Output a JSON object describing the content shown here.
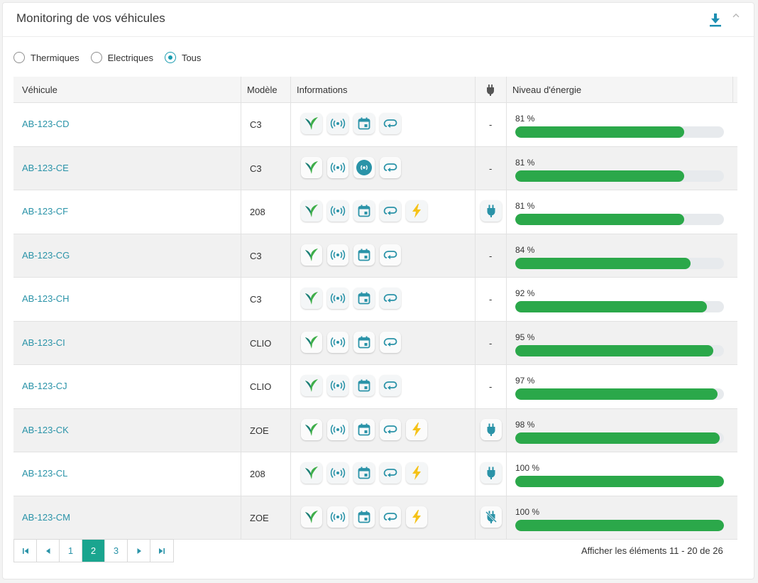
{
  "header": {
    "title": "Monitoring de vos véhicules",
    "download_icon": "download-icon",
    "collapse_icon": "chevron-up-icon"
  },
  "filters": [
    {
      "label": "Thermiques",
      "checked": false
    },
    {
      "label": "Electriques",
      "checked": false
    },
    {
      "label": "Tous",
      "checked": true
    }
  ],
  "table": {
    "columns": {
      "vehicle": "Véhicule",
      "model": "Modèle",
      "info": "Informations",
      "plug_icon": "plug-icon",
      "energy": "Niveau d'énergie"
    },
    "rows": [
      {
        "plate": "AB-123-CD",
        "model": "C3",
        "icons": [
          "bird-icon",
          "signal-icon",
          "calendar-icon",
          "route-icon"
        ],
        "plug": "-",
        "energy_label": "81 %",
        "energy": 81
      },
      {
        "plate": "AB-123-CE",
        "model": "C3",
        "icons": [
          "bird-icon",
          "signal-icon",
          "broadcast-icon",
          "route-icon"
        ],
        "plug": "-",
        "energy_label": "81 %",
        "energy": 81
      },
      {
        "plate": "AB-123-CF",
        "model": "208",
        "icons": [
          "bird-icon",
          "signal-icon",
          "calendar-icon",
          "route-icon",
          "lightning-icon"
        ],
        "plug": "plug-icon",
        "energy_label": "81 %",
        "energy": 81
      },
      {
        "plate": "AB-123-CG",
        "model": "C3",
        "icons": [
          "bird-icon",
          "signal-icon",
          "calendar-icon",
          "route-icon"
        ],
        "plug": "-",
        "energy_label": "84 %",
        "energy": 84
      },
      {
        "plate": "AB-123-CH",
        "model": "C3",
        "icons": [
          "bird-icon",
          "signal-icon",
          "calendar-icon",
          "route-icon"
        ],
        "plug": "-",
        "energy_label": "92 %",
        "energy": 92
      },
      {
        "plate": "AB-123-CI",
        "model": "CLIO",
        "icons": [
          "bird-icon",
          "signal-icon",
          "calendar-icon",
          "route-icon"
        ],
        "plug": "-",
        "energy_label": "95 %",
        "energy": 95
      },
      {
        "plate": "AB-123-CJ",
        "model": "CLIO",
        "icons": [
          "bird-icon",
          "signal-icon",
          "calendar-icon",
          "route-icon"
        ],
        "plug": "-",
        "energy_label": "97 %",
        "energy": 97
      },
      {
        "plate": "AB-123-CK",
        "model": "ZOE",
        "icons": [
          "bird-icon",
          "signal-icon",
          "calendar-icon",
          "route-icon",
          "lightning-icon"
        ],
        "plug": "plug-icon",
        "energy_label": "98 %",
        "energy": 98
      },
      {
        "plate": "AB-123-CL",
        "model": "208",
        "icons": [
          "bird-icon",
          "signal-icon",
          "calendar-icon",
          "route-icon",
          "lightning-icon"
        ],
        "plug": "plug-icon",
        "energy_label": "100 %",
        "energy": 100
      },
      {
        "plate": "AB-123-CM",
        "model": "ZOE",
        "icons": [
          "bird-icon",
          "signal-icon",
          "calendar-icon",
          "route-icon",
          "lightning-icon"
        ],
        "plug": "unplugged-icon",
        "energy_label": "100 %",
        "energy": 100
      }
    ]
  },
  "pagination": {
    "pages": [
      "1",
      "2",
      "3"
    ],
    "current": "2",
    "info": "Afficher les éléments 11 - 20 de 26"
  },
  "colors": {
    "accent": "#2a93a8",
    "bar": "#2ba84a",
    "active_page": "#1aa58f",
    "lightning": "#f5c218"
  }
}
